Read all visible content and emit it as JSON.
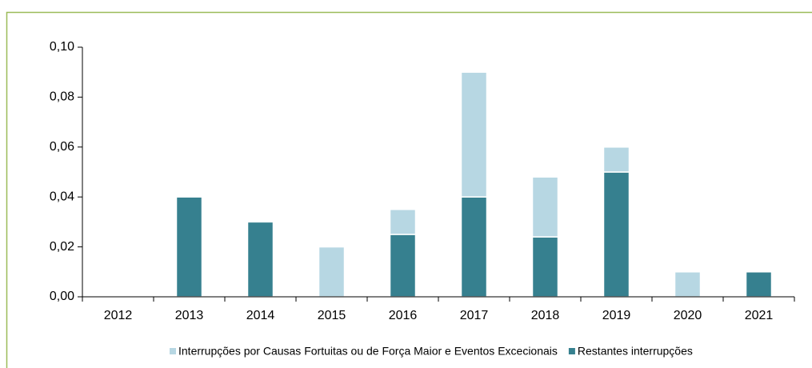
{
  "chart_data": {
    "type": "stacked_bar",
    "categories": [
      "2012",
      "2013",
      "2014",
      "2015",
      "2016",
      "2017",
      "2018",
      "2019",
      "2020",
      "2021"
    ],
    "series": [
      {
        "name": "Interrupções por Causas Fortuitas ou de Força Maior e Eventos Excecionais",
        "color": "#b7d7e3",
        "values": [
          0,
          0,
          0,
          0.02,
          0.01,
          0.05,
          0.024,
          0.01,
          0.01,
          0
        ]
      },
      {
        "name": "Restantes interrupções",
        "color": "#36808f",
        "values": [
          0,
          0.04,
          0.03,
          0,
          0.025,
          0.04,
          0.024,
          0.05,
          0,
          0.01
        ]
      }
    ],
    "ylim": [
      0,
      0.1
    ],
    "yticks": [
      {
        "value": 0,
        "label": "0,00"
      },
      {
        "value": 0.02,
        "label": "0,02"
      },
      {
        "value": 0.04,
        "label": "0,04"
      },
      {
        "value": 0.06,
        "label": "0,06"
      },
      {
        "value": 0.08,
        "label": "0,08"
      },
      {
        "value": 0.1,
        "label": "0,10"
      }
    ],
    "legend": "bottom"
  }
}
